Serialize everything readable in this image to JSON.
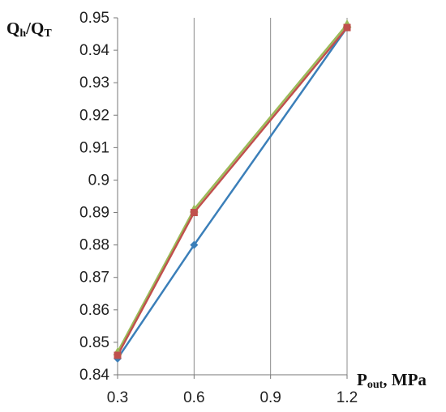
{
  "chart_data": {
    "type": "line",
    "x": [
      0.3,
      0.6,
      0.9,
      1.2
    ],
    "x_ticks": [
      "0.3",
      "0.6",
      "0.9",
      "1.2"
    ],
    "y_ticks": [
      "0.84",
      "0.85",
      "0.86",
      "0.87",
      "0.88",
      "0.89",
      "0.9",
      "0.91",
      "0.92",
      "0.93",
      "0.94",
      "0.95"
    ],
    "xlim": [
      0.3,
      1.2
    ],
    "ylim": [
      0.84,
      0.95
    ],
    "ylabel": {
      "main1": "Q",
      "sub1": "h",
      "sep": "/Q",
      "sub2": "T"
    },
    "xlabel": {
      "main": "P",
      "sub": "out",
      "rest": ", MPa"
    },
    "grid": "vertical",
    "series": [
      {
        "color": "#3b7fb9",
        "marker": "diamond",
        "x": [
          0.3,
          0.6,
          1.2
        ],
        "values": [
          0.845,
          0.88,
          0.947
        ]
      },
      {
        "color": "#9bbb59",
        "marker": "triangle",
        "x": [
          0.3,
          0.6,
          1.2
        ],
        "values": [
          0.847,
          0.891,
          0.948
        ]
      },
      {
        "color": "#c0504d",
        "marker": "square",
        "x": [
          0.3,
          0.6,
          1.2
        ],
        "values": [
          0.846,
          0.89,
          0.947
        ]
      }
    ]
  }
}
